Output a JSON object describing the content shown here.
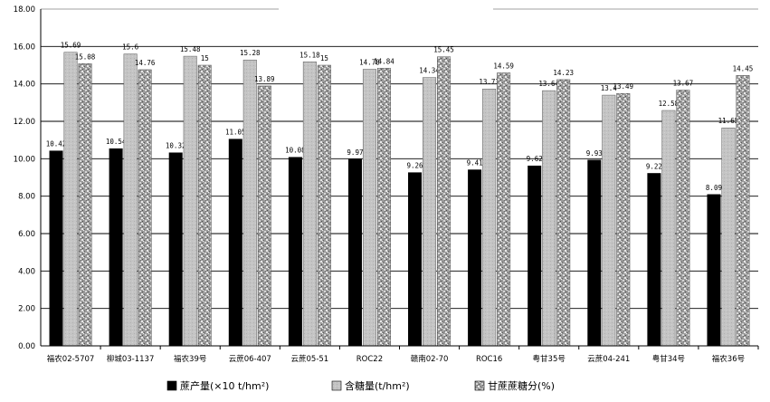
{
  "chart_data": {
    "type": "bar",
    "categories": [
      "福农02-5707",
      "柳城03-1137",
      "福农39号",
      "云蔗06-407",
      "云蔗05-51",
      "ROC22",
      "赣南02-70",
      "ROC16",
      "粤甘35号",
      "云蔗04-241",
      "粤甘34号",
      "福农36号"
    ],
    "series": [
      {
        "name": "蔗产量(×10 t/hm²)",
        "color": "#000000",
        "pattern": "solid",
        "values": [
          10.42,
          10.54,
          10.32,
          11.05,
          10.08,
          9.97,
          9.26,
          9.41,
          9.62,
          9.93,
          9.22,
          8.09
        ]
      },
      {
        "name": "含糖量(t/hm²)",
        "color": "#bdbdbd",
        "pattern": "light-gray",
        "values": [
          15.69,
          15.6,
          15.48,
          15.28,
          15.18,
          14.78,
          14.34,
          13.73,
          13.64,
          13.4,
          12.58,
          11.65
        ]
      },
      {
        "name": "甘蔗蔗糖分(%)",
        "color": "#8c8c8c",
        "pattern": "speckled",
        "values": [
          15.08,
          14.76,
          15,
          13.89,
          15,
          14.84,
          15.45,
          14.59,
          14.23,
          13.49,
          13.67,
          14.45
        ]
      }
    ],
    "ylim": [
      0,
      18
    ],
    "yticks": [
      "0.00",
      "2.00",
      "4.00",
      "6.00",
      "8.00",
      "10.00",
      "12.00",
      "14.00",
      "16.00",
      "18.00"
    ],
    "grid": true,
    "legend_position": "bottom"
  }
}
